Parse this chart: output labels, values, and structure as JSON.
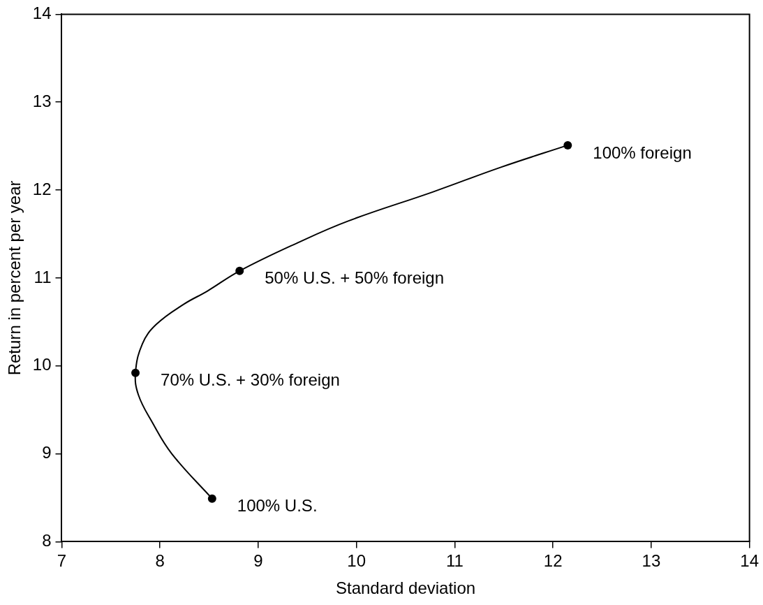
{
  "chart_data": {
    "type": "scatter",
    "xlabel": "Standard deviation",
    "ylabel": "Return in percent per year",
    "xlim": [
      7,
      14
    ],
    "xticks": [
      7,
      8,
      9,
      10,
      11,
      12,
      13,
      14
    ],
    "ylim": [
      8,
      14
    ],
    "yticks": [
      8,
      9,
      10,
      11,
      12,
      13,
      14
    ],
    "grid": false,
    "legend": false,
    "series": [
      {
        "type": "line",
        "color": "#000000",
        "marker": "none",
        "line_style": "solid",
        "x": [
          8.53,
          8.12,
          7.92,
          7.78,
          7.75,
          7.82,
          7.96,
          8.24,
          8.48,
          8.81,
          9.4,
          9.92,
          10.78,
          11.47,
          12.15
        ],
        "values": [
          8.49,
          9.0,
          9.36,
          9.67,
          9.92,
          10.25,
          10.47,
          10.7,
          10.85,
          11.08,
          11.4,
          11.65,
          11.98,
          12.26,
          12.51
        ]
      },
      {
        "color": "#000000",
        "marker": "circle",
        "x": [
          8.53,
          7.75,
          8.81,
          12.15
        ],
        "values": [
          8.49,
          9.92,
          11.08,
          12.51
        ]
      }
    ],
    "annotations": [
      {
        "text": "100% U.S.",
        "x": 8.53,
        "y": 8.49
      },
      {
        "text": "70% U.S. + 30% foreign",
        "x": 7.75,
        "y": 9.92
      },
      {
        "text": "50% U.S. + 50% foreign",
        "x": 8.81,
        "y": 11.08
      },
      {
        "text": "100% foreign",
        "x": 12.15,
        "y": 12.51
      }
    ]
  }
}
